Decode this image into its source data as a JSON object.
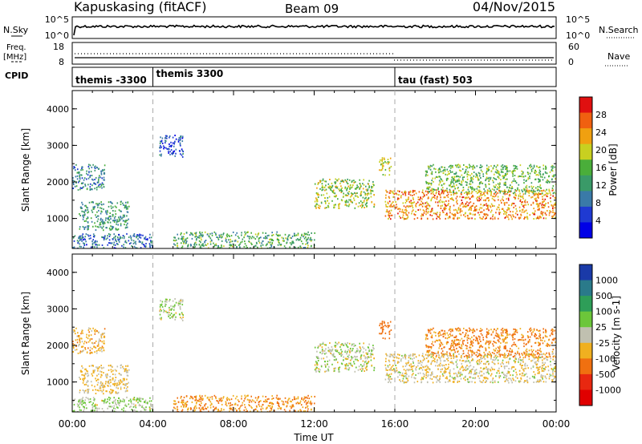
{
  "header": {
    "station": "Kapuskasing (fitACF)",
    "beam": "Beam 09",
    "date": "04/Nov/2015"
  },
  "noise_panel": {
    "left_label": "N.Sky",
    "right_label": "N.Search",
    "left_ticks": [
      "10^5",
      "10^0"
    ],
    "right_ticks": [
      "10^5",
      "10^0"
    ]
  },
  "freq_panel": {
    "left_label_1": "Freq.",
    "left_label_2": "[MHz]",
    "right_label": "Nave",
    "left_ticks": [
      "18",
      "8"
    ],
    "right_ticks": [
      "60",
      "0"
    ]
  },
  "cpid_panel": {
    "label": "CPID",
    "segments": [
      {
        "name": "themis -3300",
        "start_hour": 0
      },
      {
        "name": "themis 3300",
        "start_hour": 4
      },
      {
        "name": "tau (fast) 503",
        "start_hour": 16
      }
    ]
  },
  "time_axis": {
    "label": "Time UT",
    "ticks": [
      "00:00",
      "04:00",
      "08:00",
      "12:00",
      "16:00",
      "20:00",
      "00:00"
    ]
  },
  "power_panel": {
    "ylabel": "Slant Range [km]",
    "yticks": [
      "1000",
      "2000",
      "3000",
      "4000"
    ],
    "colorbar_label": "Power [dB]",
    "colorbar_ticks": [
      "4",
      "8",
      "12",
      "16",
      "20",
      "24",
      "28"
    ],
    "colors": [
      "#0000e6",
      "#1f3ad2",
      "#3a7aa8",
      "#3a9a68",
      "#4aae3a",
      "#c8d020",
      "#f0a010",
      "#f06010",
      "#e01010"
    ]
  },
  "velocity_panel": {
    "ylabel": "Slant Range [km]",
    "yticks": [
      "1000",
      "2000",
      "3000",
      "4000"
    ],
    "colorbar_label": "Velocity [m s-1]",
    "colorbar_ticks": [
      "1000",
      "500",
      "100",
      "25",
      "-25",
      "-100",
      "-500",
      "-1000"
    ],
    "colors": [
      "#1a3aa8",
      "#2a7a8a",
      "#2e9e58",
      "#6cc63a",
      "#c0c0b0",
      "#f0b020",
      "#f07010",
      "#e82810",
      "#e00000"
    ]
  },
  "chart_data": {
    "type": "heatmap",
    "x_range_hours": [
      0,
      24
    ],
    "y_range_km": [
      180,
      4500
    ],
    "echo_regions": [
      {
        "t0": 0.0,
        "t1": 1.6,
        "r0": 1800,
        "r1": 2500,
        "power": 10,
        "velocity": -60
      },
      {
        "t0": 0.3,
        "t1": 2.8,
        "r0": 700,
        "r1": 1500,
        "power": 12,
        "velocity": -40
      },
      {
        "t0": 0.0,
        "t1": 4.0,
        "r0": 200,
        "r1": 600,
        "power": 8,
        "velocity": 30
      },
      {
        "t0": 4.3,
        "t1": 5.5,
        "r0": 2700,
        "r1": 3300,
        "power": 6,
        "velocity": 20
      },
      {
        "t0": 5.0,
        "t1": 12.0,
        "r0": 200,
        "r1": 650,
        "power": 14,
        "velocity": -100
      },
      {
        "t0": 12.0,
        "t1": 15.0,
        "r0": 1300,
        "r1": 2100,
        "power": 18,
        "velocity": 10
      },
      {
        "t0": 15.5,
        "t1": 24.0,
        "r0": 1000,
        "r1": 1800,
        "power": 24,
        "velocity": -20
      },
      {
        "t0": 17.5,
        "t1": 24.0,
        "r0": 1700,
        "r1": 2500,
        "power": 16,
        "velocity": -120
      },
      {
        "t0": 15.2,
        "t1": 15.8,
        "r0": 2200,
        "r1": 2700,
        "power": 20,
        "velocity": -300
      }
    ]
  }
}
